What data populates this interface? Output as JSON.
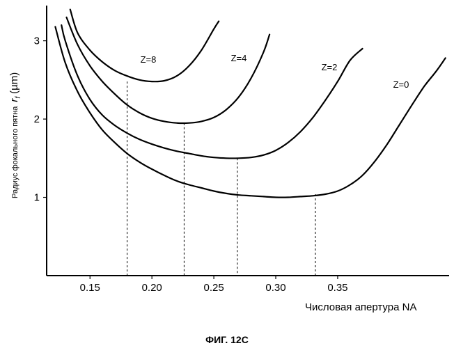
{
  "chart_data": {
    "type": "line",
    "title": "",
    "caption": "ФИГ. 12С",
    "xlabel": "Числовая апертура NA",
    "ylabel": {
      "text": "Радиус фокального пятна",
      "symbol": "r",
      "subscript": "f",
      "unit": "(µm)"
    },
    "xlim": [
      0.115,
      0.44
    ],
    "ylim": [
      0.0,
      3.45
    ],
    "x_ticks": [
      "0.15",
      "0.20",
      "0.25",
      "0.30",
      "0.35"
    ],
    "y_ticks": [
      "1",
      "2",
      "3"
    ],
    "grid": false,
    "legend": "none",
    "series": [
      {
        "name": "Z=8",
        "x": [
          0.134,
          0.14,
          0.15,
          0.16,
          0.17,
          0.18,
          0.19,
          0.2,
          0.21,
          0.22,
          0.23,
          0.24,
          0.25,
          0.254
        ],
        "y": [
          3.4,
          3.1,
          2.88,
          2.73,
          2.62,
          2.55,
          2.5,
          2.48,
          2.49,
          2.55,
          2.68,
          2.88,
          3.15,
          3.25
        ]
      },
      {
        "name": "Z=4",
        "x": [
          0.131,
          0.14,
          0.15,
          0.16,
          0.17,
          0.18,
          0.19,
          0.2,
          0.21,
          0.22,
          0.23,
          0.24,
          0.25,
          0.26,
          0.27,
          0.28,
          0.29,
          0.295
        ],
        "y": [
          3.3,
          2.95,
          2.68,
          2.48,
          2.32,
          2.18,
          2.08,
          2.01,
          1.97,
          1.95,
          1.95,
          1.97,
          2.02,
          2.12,
          2.28,
          2.52,
          2.85,
          3.08
        ]
      },
      {
        "name": "Z=2",
        "x": [
          0.127,
          0.13,
          0.14,
          0.15,
          0.16,
          0.17,
          0.18,
          0.19,
          0.2,
          0.21,
          0.22,
          0.23,
          0.24,
          0.25,
          0.26,
          0.27,
          0.28,
          0.29,
          0.3,
          0.31,
          0.32,
          0.33,
          0.34,
          0.35,
          0.36,
          0.37
        ],
        "y": [
          3.2,
          3.0,
          2.55,
          2.25,
          2.05,
          1.92,
          1.82,
          1.74,
          1.68,
          1.63,
          1.59,
          1.56,
          1.53,
          1.51,
          1.5,
          1.5,
          1.51,
          1.54,
          1.6,
          1.7,
          1.84,
          2.02,
          2.24,
          2.48,
          2.75,
          2.9
        ]
      },
      {
        "name": "Z=0",
        "x": [
          0.122,
          0.13,
          0.14,
          0.15,
          0.16,
          0.17,
          0.18,
          0.19,
          0.2,
          0.21,
          0.22,
          0.23,
          0.24,
          0.25,
          0.26,
          0.27,
          0.28,
          0.29,
          0.3,
          0.31,
          0.32,
          0.33,
          0.34,
          0.35,
          0.36,
          0.37,
          0.38,
          0.39,
          0.4,
          0.41,
          0.42,
          0.43,
          0.437
        ],
        "y": [
          3.18,
          2.72,
          2.35,
          2.08,
          1.86,
          1.7,
          1.56,
          1.45,
          1.36,
          1.28,
          1.21,
          1.16,
          1.12,
          1.08,
          1.05,
          1.03,
          1.02,
          1.01,
          1.0,
          1.0,
          1.01,
          1.02,
          1.04,
          1.08,
          1.16,
          1.28,
          1.46,
          1.68,
          1.93,
          2.18,
          2.42,
          2.62,
          2.78
        ]
      }
    ],
    "minima": [
      {
        "series": "Z=8",
        "x": 0.18,
        "y": 2.48
      },
      {
        "series": "Z=4",
        "x": 0.226,
        "y": 1.95
      },
      {
        "series": "Z=2",
        "x": 0.269,
        "y": 1.5
      },
      {
        "series": "Z=0",
        "x": 0.332,
        "y": 1.04
      }
    ]
  }
}
